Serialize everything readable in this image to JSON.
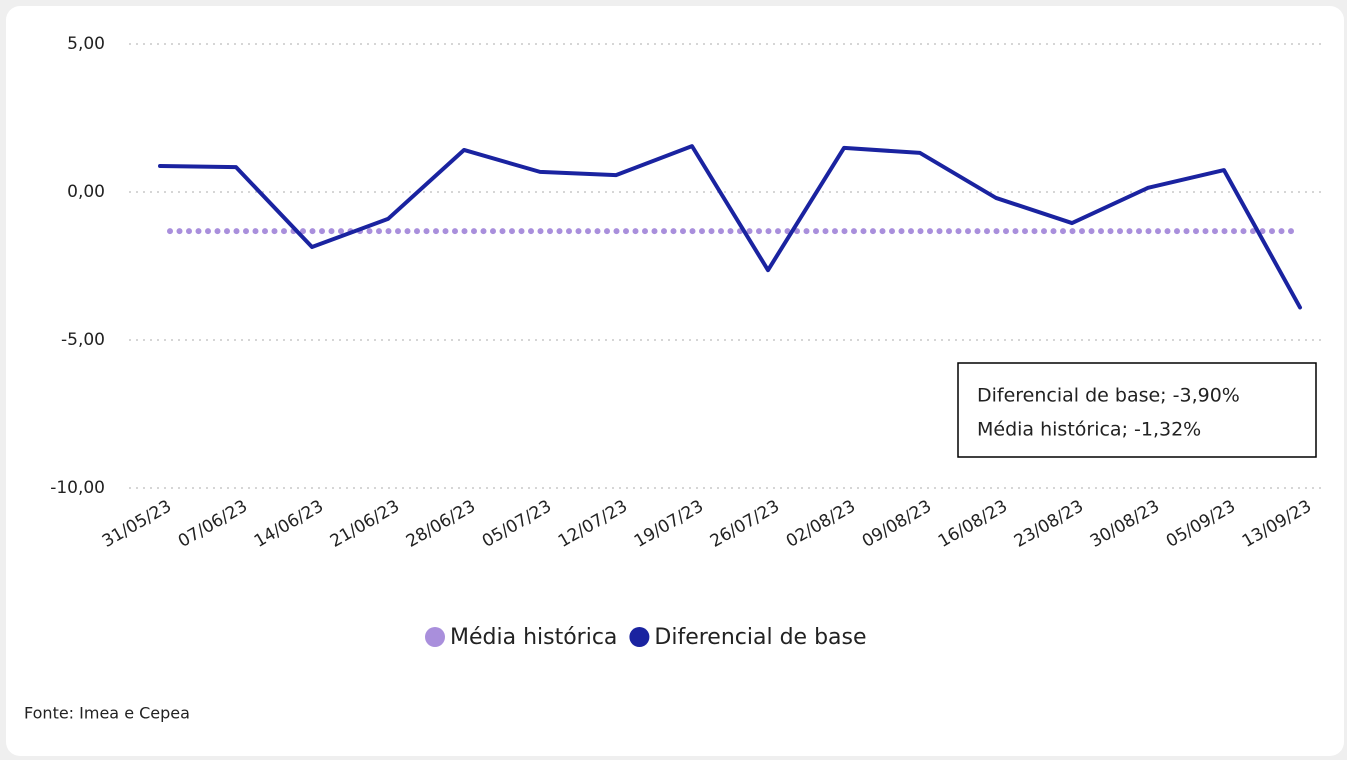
{
  "chart_data": {
    "type": "line",
    "categories": [
      "31/05/23",
      "07/06/23",
      "14/06/23",
      "21/06/23",
      "28/06/23",
      "05/07/23",
      "12/07/23",
      "19/07/23",
      "26/07/23",
      "02/08/23",
      "09/08/23",
      "16/08/23",
      "23/08/23",
      "30/08/23",
      "05/09/23",
      "13/09/23"
    ],
    "series": [
      {
        "name": "Média histórica",
        "color": "#a98fdc",
        "dash": true,
        "values": [
          -1.32,
          -1.32,
          -1.32,
          -1.32,
          -1.32,
          -1.32,
          -1.32,
          -1.32,
          -1.32,
          -1.32,
          -1.32,
          -1.32,
          -1.32,
          -1.32,
          -1.32,
          -1.32
        ]
      },
      {
        "name": "Diferencial de base",
        "color": "#1a23a0",
        "dash": false,
        "values": [
          0.88,
          0.84,
          -1.86,
          -0.91,
          1.42,
          0.68,
          0.57,
          1.55,
          -2.64,
          1.49,
          1.32,
          -0.2,
          -1.05,
          0.14,
          0.74,
          -3.9
        ]
      }
    ],
    "ylim": [
      -10,
      5
    ],
    "yticks": [
      {
        "value": -10,
        "label": "-10,00"
      },
      {
        "value": -5,
        "label": "-5,00"
      },
      {
        "value": 0,
        "label": "0,00"
      },
      {
        "value": 5,
        "label": "5,00"
      }
    ],
    "grid": true,
    "annotations": [
      "Diferencial de base; -3,90%",
      "Média histórica; -1,32%"
    ],
    "source": "Fonte: Imea e Cepea"
  }
}
